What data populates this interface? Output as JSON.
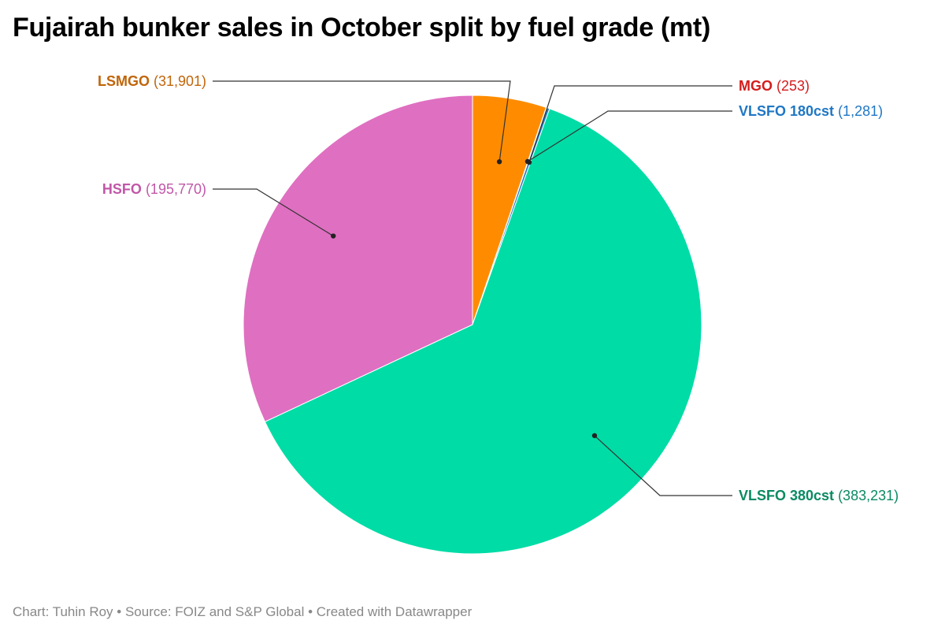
{
  "title": "Fujairah bunker sales in October split by fuel grade (mt)",
  "footer": "Chart: Tuhin Roy • Source: FOIZ and S&P Global • Created with Datawrapper",
  "chart_data": {
    "type": "pie",
    "title": "Fujairah bunker sales in October split by fuel grade (mt)",
    "slices": [
      {
        "name": "LSMGO",
        "value": 31901,
        "value_label": "(31,901)",
        "color": "#ff8c00",
        "label_color": "#c0650a"
      },
      {
        "name": "MGO",
        "value": 253,
        "value_label": "(253)",
        "color": "#d62728",
        "label_color": "#d51b1b"
      },
      {
        "name": "VLSFO 180cst",
        "value": 1281,
        "value_label": "(1,281)",
        "color": "#1f77c4",
        "label_color": "#1f77c4"
      },
      {
        "name": "VLSFO 380cst",
        "value": 383231,
        "value_label": "(383,231)",
        "color": "#00dca6",
        "label_color": "#0a8a63"
      },
      {
        "name": "HSFO",
        "value": 195770,
        "value_label": "(195,770)",
        "color": "#df6fc1",
        "label_color": "#c157a8"
      }
    ]
  }
}
